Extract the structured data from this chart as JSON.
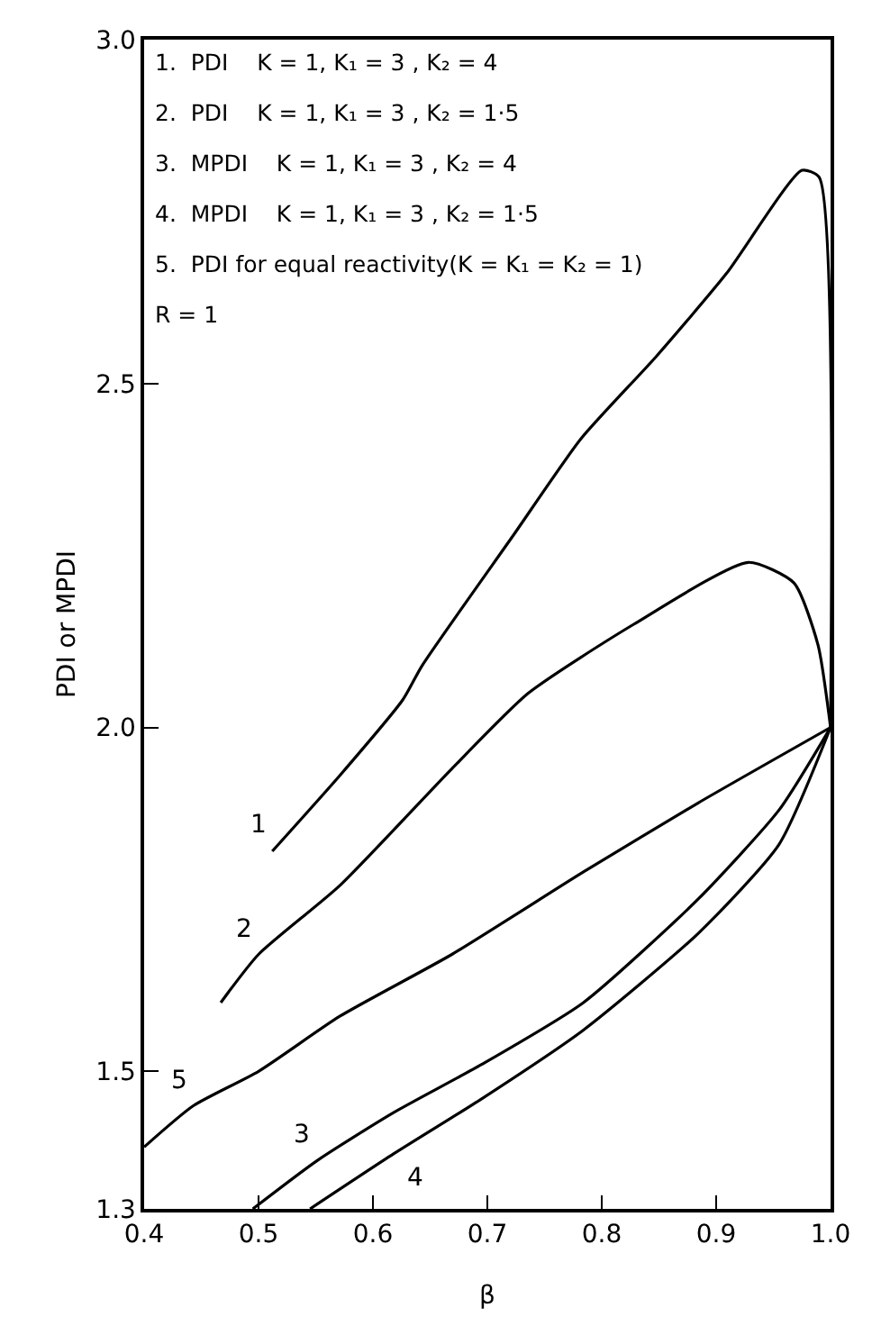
{
  "chart_data": {
    "type": "line",
    "xlabel": "β",
    "ylabel": "PDI or MPDI",
    "xlim": [
      0.4,
      1.0
    ],
    "ylim": [
      1.3,
      3.0
    ],
    "xticks": [
      {
        "value": 0.4,
        "label": "0.4"
      },
      {
        "value": 0.5,
        "label": "0.5"
      },
      {
        "value": 0.6,
        "label": "0.6"
      },
      {
        "value": 0.7,
        "label": "0.7"
      },
      {
        "value": 0.8,
        "label": "0.8"
      },
      {
        "value": 0.9,
        "label": "0.9"
      },
      {
        "value": 1.0,
        "label": "1.0"
      }
    ],
    "yticks": [
      {
        "value": 1.3,
        "label": "1.3"
      },
      {
        "value": 1.5,
        "label": "1.5"
      },
      {
        "value": 2.0,
        "label": "2.0"
      },
      {
        "value": 2.5,
        "label": "2.5"
      },
      {
        "value": 3.0,
        "label": "3.0"
      }
    ],
    "grid": false,
    "marker": "none",
    "line_style": "solid",
    "series": [
      {
        "color": "#000000",
        "x": [
          0.512,
          0.571,
          0.626,
          0.643,
          0.723,
          0.782,
          0.848,
          0.909,
          0.975,
          0.99,
          1.0
        ],
        "values": [
          1.82,
          1.93,
          2.04,
          2.09,
          2.28,
          2.42,
          2.54,
          2.66,
          2.81,
          2.8,
          2.0
        ]
      },
      {
        "color": "#000000",
        "x": [
          0.467,
          0.5,
          0.571,
          0.669,
          0.736,
          0.828,
          0.928,
          0.968,
          0.989,
          1.0
        ],
        "values": [
          1.6,
          1.67,
          1.77,
          1.94,
          2.05,
          2.15,
          2.24,
          2.21,
          2.12,
          2.0
        ]
      },
      {
        "color": "#000000",
        "x": [
          0.495,
          0.551,
          0.618,
          0.695,
          0.784,
          0.884,
          0.955,
          1.0
        ],
        "values": [
          1.3,
          1.37,
          1.44,
          1.51,
          1.6,
          1.75,
          1.88,
          2.0
        ]
      },
      {
        "color": "#000000",
        "x": [
          0.545,
          0.618,
          0.695,
          0.784,
          0.884,
          0.955,
          1.0
        ],
        "values": [
          1.3,
          1.38,
          1.46,
          1.56,
          1.7,
          1.83,
          2.0
        ]
      },
      {
        "color": "#000000",
        "x": [
          0.4,
          0.443,
          0.5,
          0.571,
          0.669,
          0.784,
          0.884,
          1.0
        ],
        "values": [
          1.39,
          1.45,
          1.5,
          1.58,
          1.67,
          1.79,
          1.89,
          2.0
        ]
      }
    ],
    "annotations": [
      "1.  PDI    K = 1, K₁ = 3 , K₂ = 4",
      "2.  PDI    K = 1, K₁ = 3 , K₂ = 1·5",
      "3.  MPDI    K = 1, K₁ = 3 , K₂ = 4",
      "4.  MPDI    K = 1, K₁ = 3 , K₂ = 1·5",
      "5.  PDI for equal reactivity(K = K₁ = K₂ = 1)",
      "R = 1",
      {
        "text": "1",
        "x": 0.512,
        "y": 1.82
      },
      {
        "text": "2",
        "x": 0.5,
        "y": 1.67
      },
      {
        "text": "3",
        "x": 0.551,
        "y": 1.37
      },
      {
        "text": "4",
        "x": 0.618,
        "y": 1.38
      },
      {
        "text": "5",
        "x": 0.443,
        "y": 1.45
      }
    ]
  }
}
